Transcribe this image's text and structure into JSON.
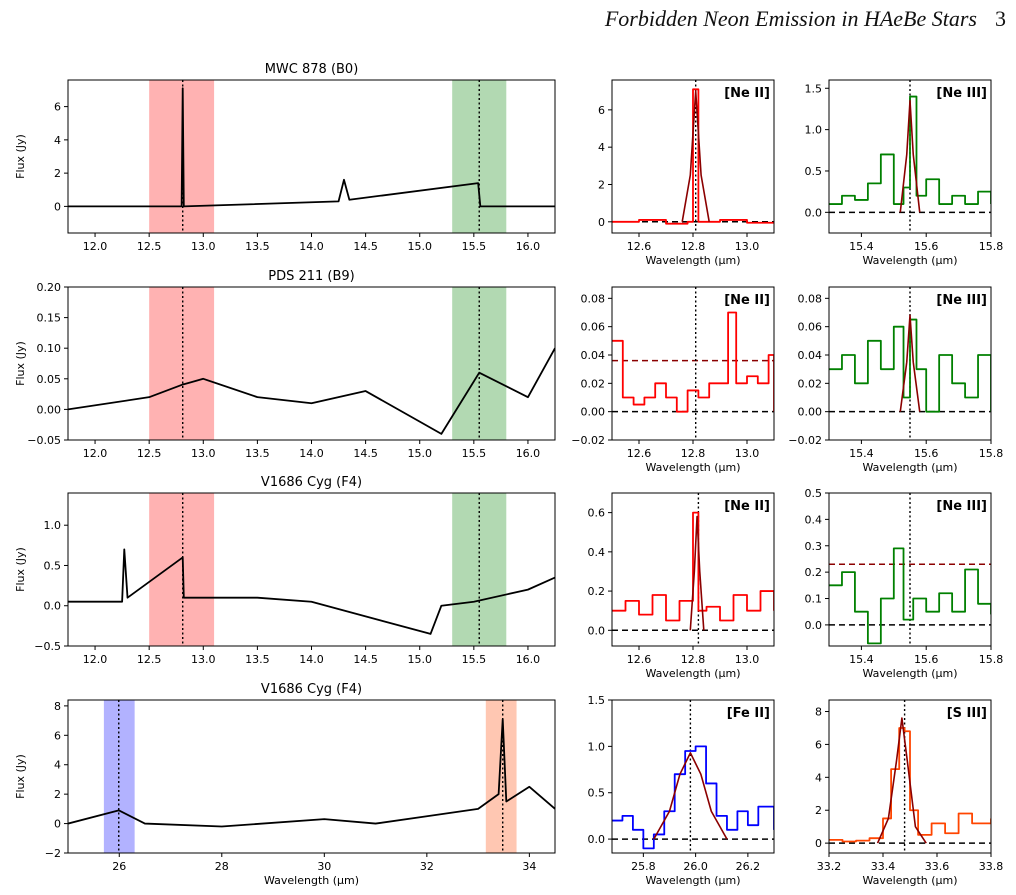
{
  "header": {
    "title": "Forbidden Neon Emission in HAeBe Stars",
    "page": "3"
  },
  "colors": {
    "neII": "#ff0000",
    "neIII": "#008000",
    "feII": "#0000ff",
    "sIII": "#ff4500",
    "fit": "#8b0000",
    "spec": "#000000"
  },
  "chart_data": [
    {
      "type": "line",
      "panel": "row1-spectrum",
      "title": "MWC 878 (B0)",
      "xlabel": "",
      "ylabel": "Flux (Jy)",
      "xlim": [
        11.75,
        16.25
      ],
      "ylim": [
        -1.6,
        7.6
      ],
      "xticks": [
        12.0,
        12.5,
        13.0,
        13.5,
        14.0,
        14.5,
        15.0,
        15.5,
        16.0
      ],
      "yticks": [
        0,
        2,
        4,
        6
      ],
      "bands": [
        {
          "range": [
            12.5,
            13.1
          ],
          "color": "#ff0000"
        },
        {
          "range": [
            15.3,
            15.8
          ],
          "color": "#008000"
        }
      ],
      "vlines": [
        12.81,
        15.55
      ],
      "series": [
        {
          "color": "#000000",
          "x": [
            11.75,
            12.8,
            12.81,
            12.82,
            14.25,
            14.3,
            14.35,
            15.54,
            15.56,
            16.25
          ],
          "y": [
            0,
            0,
            7.1,
            0,
            0.3,
            1.6,
            0.4,
            1.4,
            0,
            0
          ]
        }
      ]
    },
    {
      "type": "line",
      "panel": "row1-neII",
      "title": "",
      "xlabel": "Wavelength (µm)",
      "ylabel": "",
      "label": "[Ne II]",
      "xlim": [
        12.5,
        13.1
      ],
      "ylim": [
        -0.6,
        7.6
      ],
      "xticks": [
        12.6,
        12.8,
        13.0
      ],
      "yticks": [
        0,
        2,
        4,
        6
      ],
      "vlines": [
        12.81
      ],
      "hlines": [
        {
          "y": 0,
          "style": "dashed",
          "color": "#000000"
        }
      ],
      "series": [
        {
          "color": "#ff0000",
          "step": true,
          "x": [
            12.5,
            12.6,
            12.7,
            12.78,
            12.8,
            12.82,
            12.9,
            13.0,
            13.1
          ],
          "y": [
            0,
            0.1,
            -0.1,
            0,
            7.1,
            0,
            0.1,
            -0.05,
            0
          ]
        },
        {
          "color": "#8b0000",
          "fit": true,
          "x": [
            12.76,
            12.79,
            12.81,
            12.83,
            12.86
          ],
          "y": [
            0,
            2.5,
            7.0,
            2.5,
            0
          ]
        }
      ]
    },
    {
      "type": "line",
      "panel": "row1-neIII",
      "title": "",
      "xlabel": "Wavelength (µm)",
      "ylabel": "",
      "label": "[Ne III]",
      "xlim": [
        15.3,
        15.8
      ],
      "ylim": [
        -0.25,
        1.6
      ],
      "xticks": [
        15.4,
        15.6,
        15.8
      ],
      "yticks": [
        0.0,
        0.5,
        1.0,
        1.5
      ],
      "vlines": [
        15.55
      ],
      "hlines": [
        {
          "y": 0,
          "style": "dashed",
          "color": "#000000"
        }
      ],
      "series": [
        {
          "color": "#008000",
          "step": true,
          "x": [
            15.3,
            15.34,
            15.38,
            15.42,
            15.46,
            15.5,
            15.53,
            15.55,
            15.57,
            15.6,
            15.64,
            15.68,
            15.72,
            15.76,
            15.8
          ],
          "y": [
            0.1,
            0.2,
            0.15,
            0.35,
            0.7,
            0.1,
            0.3,
            1.4,
            0.2,
            0.4,
            0.1,
            0.2,
            0.1,
            0.25,
            0.1
          ]
        },
        {
          "color": "#8b0000",
          "fit": true,
          "x": [
            15.52,
            15.54,
            15.55,
            15.56,
            15.58
          ],
          "y": [
            0,
            0.7,
            1.35,
            0.7,
            0
          ]
        }
      ]
    },
    {
      "type": "line",
      "panel": "row2-spectrum",
      "title": "PDS 211 (B9)",
      "xlabel": "",
      "ylabel": "Flux (Jy)",
      "xlim": [
        11.75,
        16.25
      ],
      "ylim": [
        -0.05,
        0.2
      ],
      "xticks": [
        12.0,
        12.5,
        13.0,
        13.5,
        14.0,
        14.5,
        15.0,
        15.5,
        16.0
      ],
      "yticks": [
        -0.05,
        0.0,
        0.05,
        0.1,
        0.15,
        0.2
      ],
      "bands": [
        {
          "range": [
            12.5,
            13.1
          ],
          "color": "#ff0000"
        },
        {
          "range": [
            15.3,
            15.8
          ],
          "color": "#008000"
        }
      ],
      "vlines": [
        12.81,
        15.55
      ],
      "series": [
        {
          "color": "#000000",
          "x": [
            11.75,
            12.5,
            12.8,
            13.0,
            13.5,
            14.0,
            14.5,
            15.0,
            15.2,
            15.55,
            16.0,
            16.25
          ],
          "y": [
            0,
            0.02,
            0.04,
            0.05,
            0.02,
            0.01,
            0.03,
            -0.02,
            -0.04,
            0.06,
            0.02,
            0.1
          ]
        }
      ]
    },
    {
      "type": "line",
      "panel": "row2-neII",
      "title": "",
      "xlabel": "Wavelength (µm)",
      "ylabel": "",
      "label": "[Ne II]",
      "xlim": [
        12.5,
        13.1
      ],
      "ylim": [
        -0.02,
        0.088
      ],
      "xticks": [
        12.6,
        12.8,
        13.0
      ],
      "yticks": [
        -0.02,
        0.0,
        0.02,
        0.04,
        0.06,
        0.08
      ],
      "vlines": [
        12.81
      ],
      "hlines": [
        {
          "y": 0,
          "style": "dashed",
          "color": "#000000"
        },
        {
          "y": 0.036,
          "style": "dashed",
          "color": "#8b0000"
        }
      ],
      "series": [
        {
          "color": "#ff0000",
          "step": true,
          "x": [
            12.5,
            12.54,
            12.58,
            12.62,
            12.66,
            12.7,
            12.74,
            12.78,
            12.82,
            12.86,
            12.9,
            12.93,
            12.96,
            13.0,
            13.04,
            13.08,
            13.1
          ],
          "y": [
            0.05,
            0.01,
            0.005,
            0.01,
            0.02,
            0.01,
            0.0,
            0.015,
            0.01,
            0.02,
            0.02,
            0.07,
            0.02,
            0.025,
            0.02,
            0.04,
            0.0
          ]
        }
      ]
    },
    {
      "type": "line",
      "panel": "row2-neIII",
      "title": "",
      "xlabel": "Wavelength (µm)",
      "ylabel": "",
      "label": "[Ne III]",
      "xlim": [
        15.3,
        15.8
      ],
      "ylim": [
        -0.02,
        0.088
      ],
      "xticks": [
        15.4,
        15.6,
        15.8
      ],
      "yticks": [
        -0.02,
        0.0,
        0.02,
        0.04,
        0.06,
        0.08
      ],
      "vlines": [
        15.55
      ],
      "hlines": [
        {
          "y": 0,
          "style": "dashed",
          "color": "#000000"
        }
      ],
      "series": [
        {
          "color": "#008000",
          "step": true,
          "x": [
            15.3,
            15.34,
            15.38,
            15.42,
            15.46,
            15.5,
            15.53,
            15.55,
            15.57,
            15.6,
            15.64,
            15.68,
            15.72,
            15.76,
            15.8
          ],
          "y": [
            0.03,
            0.04,
            0.02,
            0.05,
            0.03,
            0.06,
            0.01,
            0.065,
            0.03,
            0.0,
            0.04,
            0.02,
            0.01,
            0.04,
            0.0
          ]
        },
        {
          "color": "#8b0000",
          "fit": true,
          "x": [
            15.52,
            15.54,
            15.55,
            15.56,
            15.58
          ],
          "y": [
            0,
            0.035,
            0.068,
            0.035,
            0
          ]
        }
      ]
    },
    {
      "type": "line",
      "panel": "row3-spectrum",
      "title": "V1686 Cyg (F4)",
      "xlabel": "",
      "ylabel": "Flux (Jy)",
      "xlim": [
        11.75,
        16.25
      ],
      "ylim": [
        -0.5,
        1.4
      ],
      "xticks": [
        12.0,
        12.5,
        13.0,
        13.5,
        14.0,
        14.5,
        15.0,
        15.5,
        16.0
      ],
      "yticks": [
        -0.5,
        0.0,
        0.5,
        1.0
      ],
      "bands": [
        {
          "range": [
            12.5,
            13.1
          ],
          "color": "#ff0000"
        },
        {
          "range": [
            15.3,
            15.8
          ],
          "color": "#008000"
        }
      ],
      "vlines": [
        12.81,
        15.55
      ],
      "series": [
        {
          "color": "#000000",
          "x": [
            11.75,
            12.25,
            12.27,
            12.3,
            12.81,
            12.82,
            13.5,
            14.0,
            15.1,
            15.2,
            15.5,
            16.0,
            16.25
          ],
          "y": [
            0.05,
            0.05,
            0.7,
            0.1,
            0.6,
            0.1,
            0.1,
            0.05,
            -0.35,
            0.0,
            0.05,
            0.2,
            0.35
          ]
        }
      ]
    },
    {
      "type": "line",
      "panel": "row3-neII",
      "title": "",
      "xlabel": "Wavelength (µm)",
      "ylabel": "",
      "label": "[Ne II]",
      "xlim": [
        12.5,
        13.1
      ],
      "ylim": [
        -0.08,
        0.7
      ],
      "xticks": [
        12.6,
        12.8,
        13.0
      ],
      "yticks": [
        0.0,
        0.2,
        0.4,
        0.6
      ],
      "vlines": [
        12.82
      ],
      "hlines": [
        {
          "y": 0,
          "style": "dashed",
          "color": "#000000"
        }
      ],
      "series": [
        {
          "color": "#ff0000",
          "step": true,
          "x": [
            12.5,
            12.55,
            12.6,
            12.65,
            12.7,
            12.75,
            12.8,
            12.82,
            12.85,
            12.9,
            12.95,
            13.0,
            13.05,
            13.1
          ],
          "y": [
            0.1,
            0.15,
            0.08,
            0.18,
            0.05,
            0.15,
            0.6,
            0.1,
            0.12,
            0.05,
            0.18,
            0.1,
            0.2,
            0.1
          ]
        },
        {
          "color": "#8b0000",
          "fit": true,
          "x": [
            12.79,
            12.805,
            12.815,
            12.825,
            12.84
          ],
          "y": [
            0,
            0.3,
            0.58,
            0.3,
            0
          ]
        }
      ]
    },
    {
      "type": "line",
      "panel": "row3-neIII",
      "title": "",
      "xlabel": "Wavelength (µm)",
      "ylabel": "",
      "label": "[Ne III]",
      "xlim": [
        15.3,
        15.8
      ],
      "ylim": [
        -0.08,
        0.5
      ],
      "xticks": [
        15.4,
        15.6,
        15.8
      ],
      "yticks": [
        0.0,
        0.1,
        0.2,
        0.3,
        0.4,
        0.5
      ],
      "vlines": [
        15.55
      ],
      "hlines": [
        {
          "y": 0,
          "style": "dashed",
          "color": "#000000"
        },
        {
          "y": 0.23,
          "style": "dashed",
          "color": "#8b0000"
        }
      ],
      "series": [
        {
          "color": "#008000",
          "step": true,
          "x": [
            15.3,
            15.34,
            15.38,
            15.42,
            15.46,
            15.5,
            15.53,
            15.56,
            15.6,
            15.64,
            15.68,
            15.72,
            15.76,
            15.8
          ],
          "y": [
            0.15,
            0.2,
            0.05,
            -0.07,
            0.1,
            0.29,
            0.02,
            0.1,
            0.05,
            0.12,
            0.05,
            0.21,
            0.08,
            0.04
          ]
        }
      ]
    },
    {
      "type": "line",
      "panel": "row4-spectrum",
      "title": "V1686 Cyg (F4)",
      "xlabel": "Wavelength (µm)",
      "ylabel": "Flux (Jy)",
      "xlim": [
        25.0,
        34.5
      ],
      "ylim": [
        -2.0,
        8.4
      ],
      "xticks": [
        26,
        28,
        30,
        32,
        34
      ],
      "yticks": [
        -2,
        0,
        2,
        4,
        6,
        8
      ],
      "bands": [
        {
          "range": [
            25.7,
            26.3
          ],
          "color": "#0000ff"
        },
        {
          "range": [
            33.15,
            33.75
          ],
          "color": "#ff4500"
        }
      ],
      "vlines": [
        25.99,
        33.48
      ],
      "series": [
        {
          "color": "#000000",
          "x": [
            25.0,
            25.99,
            26.5,
            28.0,
            30.0,
            31.0,
            32.0,
            33.0,
            33.4,
            33.48,
            33.55,
            34.0,
            34.5
          ],
          "y": [
            0,
            0.9,
            0,
            -0.2,
            0.3,
            0,
            0.5,
            1.0,
            2.0,
            7.1,
            1.5,
            2.5,
            1.0
          ]
        }
      ]
    },
    {
      "type": "line",
      "panel": "row4-feII",
      "title": "",
      "xlabel": "Wavelength (µm)",
      "ylabel": "",
      "label": "[Fe II]",
      "xlim": [
        25.68,
        26.3
      ],
      "ylim": [
        -0.15,
        1.5
      ],
      "xticks": [
        25.8,
        26.0,
        26.2
      ],
      "yticks": [
        0.0,
        0.5,
        1.0,
        1.5
      ],
      "vlines": [
        25.98
      ],
      "hlines": [
        {
          "y": 0,
          "style": "dashed",
          "color": "#000000"
        }
      ],
      "series": [
        {
          "color": "#0000ff",
          "step": true,
          "x": [
            25.68,
            25.72,
            25.76,
            25.8,
            25.84,
            25.88,
            25.92,
            25.96,
            26.0,
            26.04,
            26.08,
            26.12,
            26.16,
            26.2,
            26.24,
            26.3
          ],
          "y": [
            0.2,
            0.25,
            0.1,
            -0.1,
            0.05,
            0.3,
            0.7,
            0.95,
            1.0,
            0.6,
            0.25,
            0.1,
            0.3,
            0.15,
            0.35,
            0.1
          ]
        },
        {
          "color": "#8b0000",
          "fit": true,
          "x": [
            25.84,
            25.9,
            25.94,
            25.98,
            26.02,
            26.06,
            26.12
          ],
          "y": [
            0,
            0.3,
            0.7,
            0.93,
            0.7,
            0.3,
            0
          ]
        }
      ]
    },
    {
      "type": "line",
      "panel": "row4-sIII",
      "title": "",
      "xlabel": "Wavelength (µm)",
      "ylabel": "",
      "label": "[S III]",
      "xlim": [
        33.2,
        33.8
      ],
      "ylim": [
        -0.6,
        8.7
      ],
      "xticks": [
        33.2,
        33.4,
        33.6,
        33.8
      ],
      "yticks": [
        0,
        2,
        4,
        6,
        8
      ],
      "vlines": [
        33.48
      ],
      "hlines": [
        {
          "y": 0,
          "style": "dashed",
          "color": "#000000"
        }
      ],
      "series": [
        {
          "color": "#ff4500",
          "step": true,
          "x": [
            33.2,
            33.25,
            33.3,
            33.35,
            33.4,
            33.43,
            33.46,
            33.48,
            33.5,
            33.53,
            33.58,
            33.63,
            33.68,
            33.73,
            33.8
          ],
          "y": [
            0.2,
            0.1,
            0.15,
            0.3,
            1.5,
            4.5,
            7.0,
            6.8,
            2.0,
            0.5,
            1.2,
            0.6,
            1.8,
            1.2,
            1.5
          ]
        },
        {
          "color": "#8b0000",
          "fit": true,
          "x": [
            33.38,
            33.42,
            33.45,
            33.47,
            33.49,
            33.52,
            33.56
          ],
          "y": [
            0,
            1.5,
            5.0,
            7.6,
            5.0,
            1.0,
            0
          ]
        }
      ]
    }
  ]
}
